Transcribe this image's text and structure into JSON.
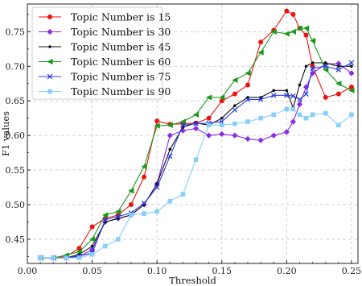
{
  "chart_data": {
    "type": "line",
    "title": "",
    "xlabel": "Threshold",
    "ylabel": "F1 values",
    "xlim": [
      0.0,
      0.255
    ],
    "ylim": [
      0.415,
      0.79
    ],
    "xticks": [
      0.0,
      0.05,
      0.1,
      0.15,
      0.2,
      0.25
    ],
    "xtick_labels": [
      "0.00",
      "0.05",
      "0.10",
      "0.15",
      "0.20",
      "0.25"
    ],
    "yticks": [
      0.45,
      0.5,
      0.55,
      0.6,
      0.65,
      0.7,
      0.75
    ],
    "ytick_labels": [
      "0.45",
      "0.50",
      "0.55",
      "0.60",
      "0.65",
      "0.70",
      "0.75"
    ],
    "grid": true,
    "legend_position": "top-left",
    "x": [
      0.01,
      0.02,
      0.03,
      0.04,
      0.05,
      0.06,
      0.07,
      0.08,
      0.09,
      0.1,
      0.11,
      0.12,
      0.13,
      0.14,
      0.15,
      0.16,
      0.17,
      0.18,
      0.19,
      0.2,
      0.205,
      0.21,
      0.215,
      0.22,
      0.23,
      0.24,
      0.25
    ],
    "series": [
      {
        "name": "Topic Number is 15",
        "color": "#ee1111",
        "marker": "circle",
        "values": [
          0.423,
          0.423,
          0.425,
          0.437,
          0.468,
          0.48,
          0.485,
          0.5,
          0.54,
          0.621,
          0.616,
          0.617,
          0.618,
          0.625,
          0.65,
          0.66,
          0.673,
          0.735,
          0.752,
          0.78,
          0.775,
          0.755,
          0.745,
          0.7,
          0.655,
          0.66,
          0.67
        ]
      },
      {
        "name": "Topic Number is 30",
        "color": "#8a2be2",
        "marker": "diamond",
        "values": [
          0.423,
          0.423,
          0.423,
          0.425,
          0.435,
          0.475,
          0.48,
          0.485,
          0.5,
          0.53,
          0.6,
          0.607,
          0.61,
          0.6,
          0.602,
          0.6,
          0.595,
          0.593,
          0.6,
          0.605,
          0.62,
          0.645,
          0.67,
          0.69,
          0.703,
          0.704,
          0.69
        ]
      },
      {
        "name": "Topic Number is 45",
        "color": "#111111",
        "marker": "dot",
        "values": [
          0.423,
          0.423,
          0.423,
          0.428,
          0.44,
          0.475,
          0.48,
          0.485,
          0.5,
          0.53,
          0.58,
          0.612,
          0.618,
          0.615,
          0.625,
          0.643,
          0.655,
          0.655,
          0.665,
          0.665,
          0.64,
          0.673,
          0.7,
          0.705,
          0.705,
          0.7,
          0.7
        ]
      },
      {
        "name": "Topic Number is 60",
        "color": "#1a9a1a",
        "marker": "triangle-left",
        "values": [
          0.423,
          0.423,
          0.427,
          0.432,
          0.45,
          0.485,
          0.49,
          0.52,
          0.555,
          0.614,
          0.615,
          0.62,
          0.63,
          0.655,
          0.655,
          0.68,
          0.69,
          0.72,
          0.75,
          0.747,
          0.75,
          0.755,
          0.755,
          0.737,
          0.695,
          0.675,
          0.665
        ]
      },
      {
        "name": "Topic Number is 75",
        "color": "#2a3fdd",
        "marker": "x",
        "values": [
          0.423,
          0.423,
          0.423,
          0.426,
          0.43,
          0.478,
          0.483,
          0.488,
          0.502,
          0.525,
          0.57,
          0.615,
          0.617,
          0.618,
          0.62,
          0.637,
          0.652,
          0.652,
          0.658,
          0.658,
          0.657,
          0.652,
          0.66,
          0.697,
          0.7,
          0.695,
          0.705
        ]
      },
      {
        "name": "Topic Number is 90",
        "color": "#87cefa",
        "marker": "square",
        "values": [
          0.423,
          0.423,
          0.423,
          0.423,
          0.428,
          0.44,
          0.45,
          0.485,
          0.487,
          0.49,
          0.505,
          0.515,
          0.565,
          0.615,
          0.615,
          0.617,
          0.62,
          0.625,
          0.63,
          0.638,
          0.638,
          0.63,
          0.625,
          0.63,
          0.632,
          0.615,
          0.63
        ]
      }
    ]
  }
}
